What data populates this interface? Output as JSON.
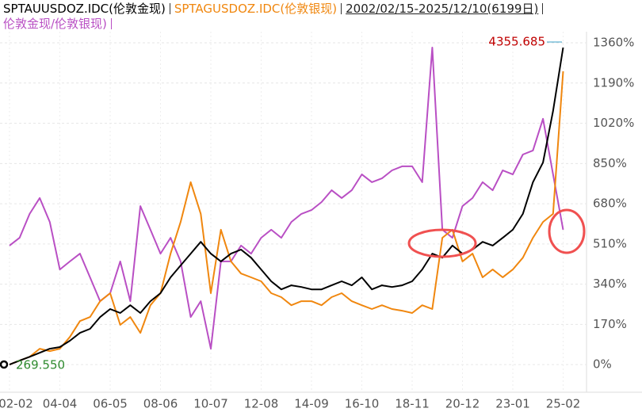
{
  "chart_data": {
    "type": "line",
    "date_range": "2002/02/15-2025/12/10(6199日)",
    "categories": [
      "02-02",
      null,
      null,
      null,
      null,
      "04-04",
      null,
      null,
      null,
      null,
      "06-05",
      null,
      null,
      null,
      null,
      "08-06",
      null,
      null,
      null,
      null,
      "10-07",
      null,
      null,
      null,
      null,
      "12-08",
      null,
      null,
      null,
      null,
      "14-09",
      null,
      null,
      null,
      null,
      "16-10",
      null,
      null,
      null,
      null,
      "18-11",
      null,
      null,
      null,
      null,
      "20-12",
      null,
      null,
      null,
      null,
      "23-01",
      null,
      null,
      null,
      null,
      "25-02"
    ],
    "series": [
      {
        "name": "SPTAUUSDOZ.IDC(伦敦金现)",
        "color": "#000000",
        "values": [
          0,
          17,
          33,
          50,
          67,
          74,
          101,
          134,
          151,
          201,
          235,
          218,
          251,
          218,
          268,
          302,
          369,
          419,
          469,
          519,
          469,
          436,
          469,
          486,
          452,
          402,
          352,
          318,
          335,
          328,
          318,
          318,
          335,
          352,
          335,
          369,
          318,
          335,
          328,
          335,
          352,
          402,
          469,
          452,
          503,
          469,
          486,
          519,
          503,
          536,
          570,
          637,
          771,
          854,
          1072,
          1340
        ]
      },
      {
        "name": "SPTAGUSDOZ.IDC(伦敦银现)",
        "color": "#f0870f",
        "values": [
          0,
          17,
          33,
          67,
          57,
          67,
          117,
          184,
          201,
          268,
          302,
          168,
          201,
          134,
          251,
          302,
          469,
          603,
          771,
          637,
          302,
          570,
          436,
          385,
          369,
          352,
          302,
          285,
          251,
          268,
          268,
          251,
          285,
          302,
          268,
          251,
          235,
          251,
          235,
          228,
          218,
          251,
          235,
          536,
          570,
          436,
          469,
          369,
          402,
          369,
          402,
          452,
          536,
          603,
          637,
          1240
        ]
      },
      {
        "name": "伦敦金现/伦敦银现)",
        "color": "#b94fc4",
        "values": [
          503,
          536,
          637,
          704,
          603,
          402,
          436,
          469,
          369,
          268,
          302,
          436,
          268,
          670,
          570,
          469,
          536,
          436,
          201,
          268,
          67,
          436,
          436,
          503,
          469,
          536,
          570,
          536,
          603,
          637,
          653,
          687,
          737,
          704,
          737,
          804,
          771,
          787,
          821,
          838,
          838,
          771,
          1340,
          570,
          536,
          670,
          704,
          771,
          737,
          821,
          804,
          888,
          905,
          1039,
          804,
          570
        ]
      }
    ],
    "ylim": [
      -100,
      1407
    ],
    "yticks": [
      {
        "value": 0,
        "label": "0%"
      },
      {
        "value": 170,
        "label": "170%"
      },
      {
        "value": 340,
        "label": "340%"
      },
      {
        "value": 510,
        "label": "510%"
      },
      {
        "value": 680,
        "label": "680%"
      },
      {
        "value": 850,
        "label": "850%"
      },
      {
        "value": 1020,
        "label": "1020%"
      },
      {
        "value": 1190,
        "label": "1190%"
      },
      {
        "value": 1360,
        "label": "1360%"
      }
    ],
    "grid": true,
    "annotations": [
      {
        "text": "4355.685",
        "color": "#c00000"
      },
      {
        "text": "269.550",
        "color": "#2e8b2e"
      }
    ]
  }
}
